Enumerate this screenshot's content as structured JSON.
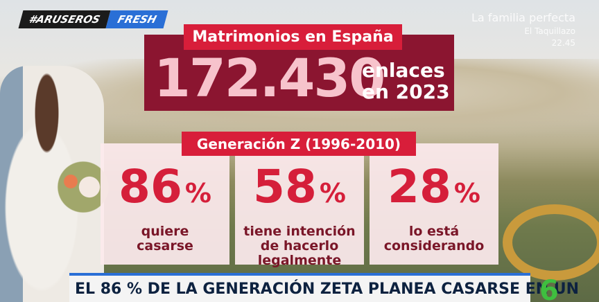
{
  "logo": {
    "hashtag": "#ARUSEROS",
    "brand": "FRESH"
  },
  "next_program": {
    "title": "La familia perfecta",
    "channel": "El Taquillazo",
    "time": "22.45"
  },
  "headline": {
    "title": "Matrimonios en España",
    "number": "172.430",
    "caption_lines": [
      "enlaces",
      "en 2023"
    ]
  },
  "section": {
    "title": "Generación Z (1996-2010)"
  },
  "cards": [
    {
      "value": "86",
      "unit": "%",
      "lines": [
        "quiere",
        "casarse"
      ]
    },
    {
      "value": "58",
      "unit": "%",
      "lines": [
        "tiene intención",
        "de hacerlo",
        "legalmente"
      ]
    },
    {
      "value": "28",
      "unit": "%",
      "lines": [
        "lo está",
        "considerando"
      ]
    }
  ],
  "ticker": {
    "text": "EL 86 % DE LA GENERACIÓN ZETA PLANEA CASARSE EN UN"
  },
  "channel_logo": "6"
}
